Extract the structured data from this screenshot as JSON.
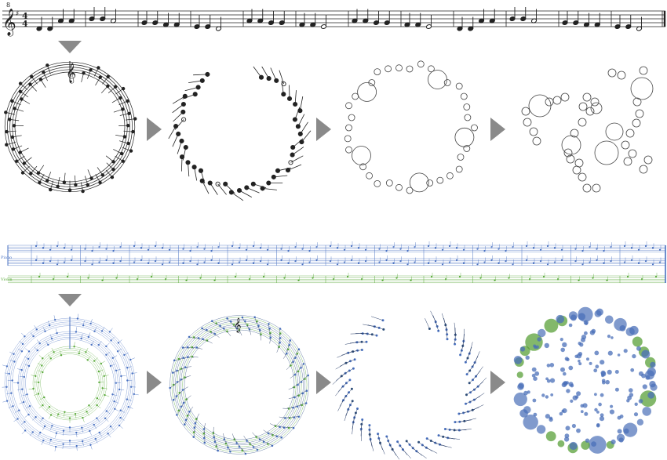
{
  "top_score": {
    "clef_octave_mark": "8",
    "time_signature_top": "4",
    "time_signature_bottom": "4",
    "measures": [
      {
        "notes": [
          "D4q",
          "D4q",
          "A4q",
          "A4q"
        ]
      },
      {
        "notes": [
          "B4q",
          "B4q",
          "A4h"
        ]
      },
      {
        "notes": [
          "G4q",
          "G4q",
          "F4q",
          "F4q"
        ]
      },
      {
        "notes": [
          "E4q",
          "E4q",
          "D4h"
        ]
      },
      {
        "notes": [
          "A4q",
          "A4q",
          "G4q",
          "G4q"
        ]
      },
      {
        "notes": [
          "F4q",
          "F4q",
          "E4h"
        ]
      },
      {
        "notes": [
          "A4q",
          "A4q",
          "G4q",
          "G4q"
        ]
      },
      {
        "notes": [
          "F4q",
          "F4q",
          "E4h"
        ]
      },
      {
        "notes": [
          "D4q",
          "D4q",
          "A4q",
          "A4q"
        ]
      },
      {
        "notes": [
          "B4q",
          "B4q",
          "A4h"
        ]
      },
      {
        "notes": [
          "G4q",
          "G4q",
          "F4q",
          "F4q"
        ]
      },
      {
        "notes": [
          "E4q",
          "E4q",
          "D4h"
        ]
      }
    ]
  },
  "bottom_score": {
    "instrument_labels": [
      "Piano",
      "Violin"
    ],
    "colors": {
      "piano": "#4a72c2",
      "violin": "#5aaa3a"
    }
  },
  "pipeline": {
    "arrow_color": "#8a8a8a",
    "stages_top": [
      "circular-score",
      "circular-notes",
      "circles",
      "scattered-circles"
    ],
    "stages_bottom": [
      "circular-score-multi",
      "circular-score-merged",
      "circular-notes-multi",
      "bubble-cloud"
    ]
  },
  "colors": {
    "ink": "#222222",
    "blue_fill": "#4a6fb8",
    "green_fill": "#5aa03a"
  }
}
